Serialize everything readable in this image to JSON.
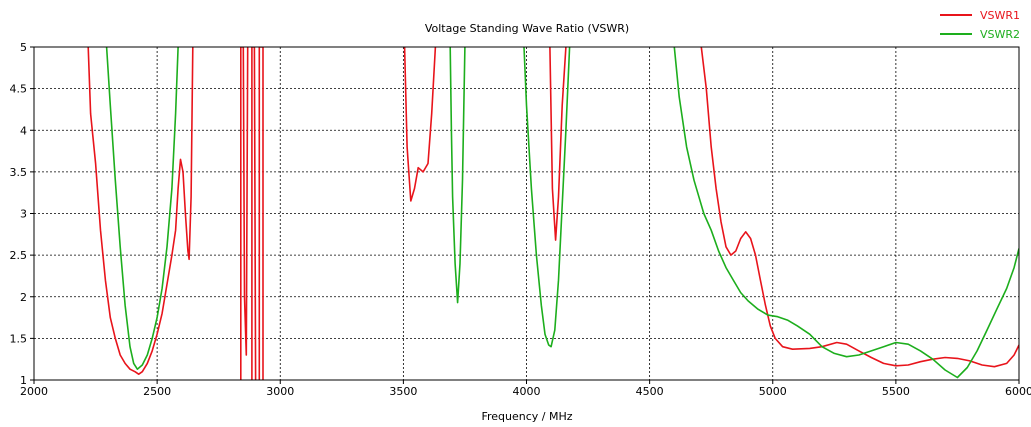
{
  "chart_data": {
    "type": "line",
    "title": "Voltage Standing Wave Ratio (VSWR)",
    "xlabel": "Frequency / MHz",
    "ylabel": "",
    "xlim": [
      2000,
      6000
    ],
    "ylim": [
      1,
      5
    ],
    "xticks": [
      2000,
      2500,
      3000,
      3500,
      4000,
      4500,
      5000,
      5500,
      6000
    ],
    "yticks": [
      1,
      1.5,
      2,
      2.5,
      3,
      3.5,
      4,
      4.5,
      5
    ],
    "grid": true,
    "legend_position": "top-right",
    "series": [
      {
        "name": "VSWR1",
        "color": "#e8141b",
        "segments": [
          [
            [
              2220,
              5.0
            ],
            [
              2230,
              4.2
            ],
            [
              2250,
              3.6
            ],
            [
              2270,
              2.8
            ],
            [
              2290,
              2.2
            ],
            [
              2310,
              1.75
            ],
            [
              2330,
              1.5
            ],
            [
              2350,
              1.3
            ],
            [
              2370,
              1.2
            ],
            [
              2390,
              1.13
            ],
            [
              2410,
              1.1
            ],
            [
              2425,
              1.07
            ],
            [
              2440,
              1.1
            ],
            [
              2460,
              1.2
            ],
            [
              2480,
              1.35
            ],
            [
              2500,
              1.55
            ],
            [
              2520,
              1.8
            ],
            [
              2540,
              2.15
            ],
            [
              2560,
              2.5
            ],
            [
              2575,
              2.8
            ],
            [
              2585,
              3.3
            ],
            [
              2595,
              3.65
            ],
            [
              2605,
              3.5
            ],
            [
              2615,
              3.0
            ],
            [
              2625,
              2.55
            ],
            [
              2630,
              2.45
            ],
            [
              2638,
              3.2
            ],
            [
              2645,
              5.0
            ]
          ],
          [
            [
              2840,
              1.0
            ],
            [
              2840,
              5.0
            ],
            [
              2850,
              5.0
            ],
            [
              2855,
              2.0
            ],
            [
              2862,
              1.3
            ],
            [
              2868,
              5.0
            ]
          ],
          [
            [
              2885,
              1.0
            ],
            [
              2885,
              5.0
            ],
            [
              2895,
              5.0
            ],
            [
              2900,
              1.0
            ]
          ],
          [
            [
              2915,
              1.0
            ],
            [
              2915,
              5.0
            ],
            [
              2930,
              5.0
            ],
            [
              2930,
              1.0
            ]
          ],
          [
            [
              3505,
              5.0
            ],
            [
              3515,
              3.8
            ],
            [
              3530,
              3.15
            ],
            [
              3545,
              3.3
            ],
            [
              3560,
              3.55
            ],
            [
              3580,
              3.5
            ],
            [
              3600,
              3.6
            ],
            [
              3615,
              4.2
            ],
            [
              3630,
              5.0
            ]
          ],
          [
            [
              4095,
              5.0
            ],
            [
              4105,
              3.3
            ],
            [
              4118,
              2.68
            ],
            [
              4130,
              3.2
            ],
            [
              4145,
              4.3
            ],
            [
              4160,
              5.0
            ]
          ],
          [
            [
              4710,
              5.0
            ],
            [
              4730,
              4.5
            ],
            [
              4750,
              3.8
            ],
            [
              4770,
              3.3
            ],
            [
              4790,
              2.9
            ],
            [
              4810,
              2.6
            ],
            [
              4830,
              2.5
            ],
            [
              4850,
              2.55
            ],
            [
              4870,
              2.7
            ],
            [
              4890,
              2.78
            ],
            [
              4910,
              2.7
            ],
            [
              4930,
              2.5
            ],
            [
              4950,
              2.2
            ],
            [
              4970,
              1.9
            ],
            [
              4990,
              1.65
            ],
            [
              5010,
              1.5
            ],
            [
              5040,
              1.4
            ],
            [
              5080,
              1.37
            ],
            [
              5150,
              1.38
            ],
            [
              5200,
              1.4
            ],
            [
              5260,
              1.45
            ],
            [
              5300,
              1.43
            ],
            [
              5350,
              1.35
            ],
            [
              5400,
              1.27
            ],
            [
              5450,
              1.2
            ],
            [
              5500,
              1.17
            ],
            [
              5550,
              1.18
            ],
            [
              5600,
              1.22
            ],
            [
              5650,
              1.25
            ],
            [
              5700,
              1.27
            ],
            [
              5750,
              1.26
            ],
            [
              5800,
              1.23
            ],
            [
              5850,
              1.18
            ],
            [
              5900,
              1.16
            ],
            [
              5950,
              1.2
            ],
            [
              5980,
              1.3
            ],
            [
              6000,
              1.42
            ]
          ]
        ]
      },
      {
        "name": "VSWR2",
        "color": "#1dae1d",
        "segments": [
          [
            [
              2295,
              5.0
            ],
            [
              2310,
              4.3
            ],
            [
              2330,
              3.4
            ],
            [
              2350,
              2.6
            ],
            [
              2370,
              1.9
            ],
            [
              2390,
              1.4
            ],
            [
              2405,
              1.2
            ],
            [
              2420,
              1.13
            ],
            [
              2440,
              1.18
            ],
            [
              2460,
              1.3
            ],
            [
              2480,
              1.5
            ],
            [
              2500,
              1.75
            ],
            [
              2520,
              2.1
            ],
            [
              2540,
              2.6
            ],
            [
              2560,
              3.3
            ],
            [
              2575,
              4.2
            ],
            [
              2585,
              5.0
            ]
          ],
          [
            [
              3690,
              5.0
            ],
            [
              3695,
              4.0
            ],
            [
              3700,
              3.2
            ],
            [
              3710,
              2.4
            ],
            [
              3720,
              1.93
            ],
            [
              3730,
              2.4
            ],
            [
              3740,
              3.4
            ],
            [
              3745,
              4.2
            ],
            [
              3750,
              5.0
            ]
          ],
          [
            [
              3990,
              5.0
            ],
            [
              4000,
              4.3
            ],
            [
              4020,
              3.3
            ],
            [
              4040,
              2.5
            ],
            [
              4060,
              1.9
            ],
            [
              4075,
              1.55
            ],
            [
              4090,
              1.42
            ],
            [
              4100,
              1.4
            ],
            [
              4115,
              1.6
            ],
            [
              4130,
              2.2
            ],
            [
              4145,
              3.1
            ],
            [
              4160,
              4.0
            ],
            [
              4175,
              5.0
            ]
          ],
          [
            [
              4600,
              5.0
            ],
            [
              4620,
              4.4
            ],
            [
              4650,
              3.8
            ],
            [
              4680,
              3.4
            ],
            [
              4700,
              3.2
            ],
            [
              4720,
              3.0
            ],
            [
              4750,
              2.8
            ],
            [
              4780,
              2.55
            ],
            [
              4810,
              2.35
            ],
            [
              4840,
              2.2
            ],
            [
              4870,
              2.05
            ],
            [
              4900,
              1.95
            ],
            [
              4940,
              1.85
            ],
            [
              4980,
              1.78
            ],
            [
              5020,
              1.76
            ],
            [
              5060,
              1.72
            ],
            [
              5100,
              1.65
            ],
            [
              5150,
              1.55
            ],
            [
              5200,
              1.4
            ],
            [
              5250,
              1.32
            ],
            [
              5300,
              1.28
            ],
            [
              5350,
              1.3
            ],
            [
              5400,
              1.35
            ],
            [
              5450,
              1.4
            ],
            [
              5500,
              1.45
            ],
            [
              5550,
              1.43
            ],
            [
              5600,
              1.35
            ],
            [
              5650,
              1.25
            ],
            [
              5700,
              1.12
            ],
            [
              5750,
              1.03
            ],
            [
              5790,
              1.15
            ],
            [
              5830,
              1.35
            ],
            [
              5870,
              1.6
            ],
            [
              5910,
              1.85
            ],
            [
              5950,
              2.1
            ],
            [
              5980,
              2.35
            ],
            [
              6000,
              2.58
            ]
          ]
        ]
      }
    ]
  }
}
